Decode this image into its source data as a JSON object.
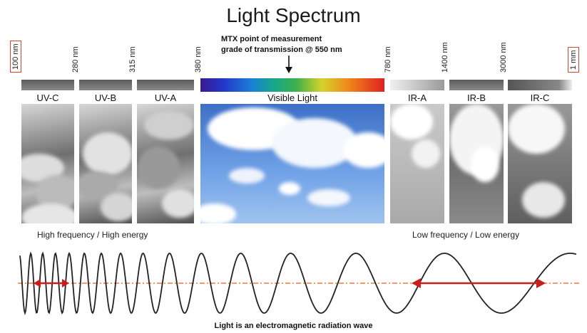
{
  "title": "Light Spectrum",
  "mtx_note": [
    "MTX point of measurement",
    "grade of transmission @ 550 nm"
  ],
  "wavelengths": [
    "100 nm",
    "280 nm",
    "315 nm",
    "380 nm",
    "780 nm",
    "1400 nm",
    "3000 nm",
    "1 mm"
  ],
  "bands": [
    "UV-C",
    "UV-B",
    "UV-A",
    "Visible Light",
    "IR-A",
    "IR-B",
    "IR-C"
  ],
  "left_caption": "High frequency / High energy",
  "right_caption": "Low frequency / Low energy",
  "bottom_caption": "Light is an electromagnetic radiation wave",
  "colors": {
    "accent_red": "#d9452b",
    "arrow_red": "#c81e1e"
  }
}
